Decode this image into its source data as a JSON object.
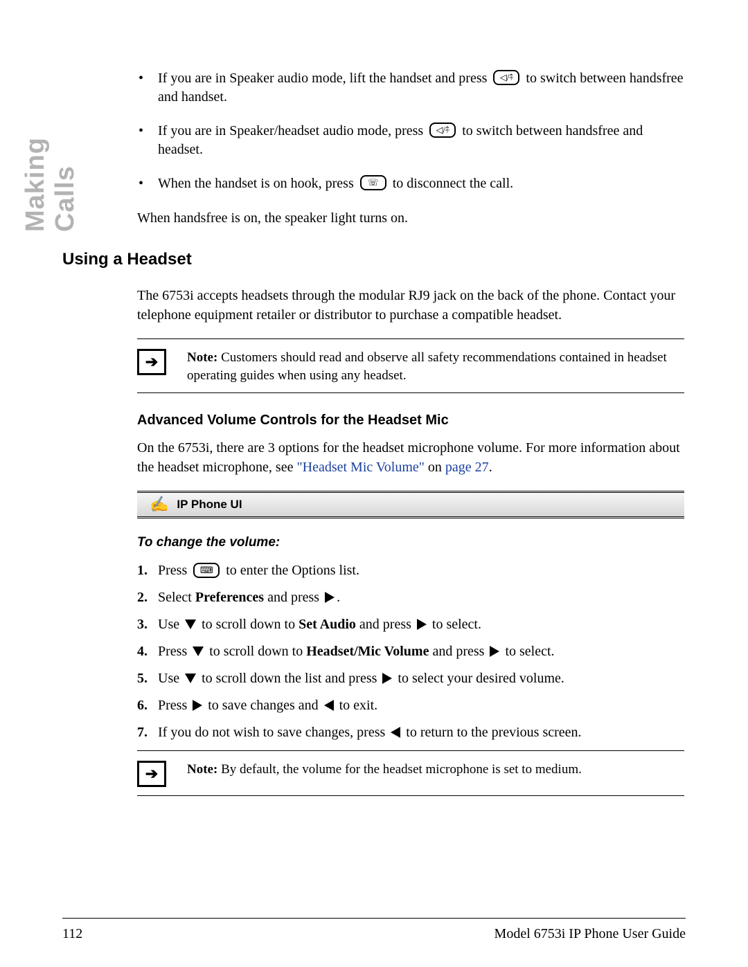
{
  "side_tab": "Making Calls",
  "bullets": {
    "b1a": "If you are in Speaker audio mode, lift the handset and press ",
    "b1b": " to switch between handsfree and handset.",
    "b2a": "If you are in Speaker/headset audio mode, press ",
    "b2b": " to switch between handsfree and headset.",
    "b3a": "When the handset is on hook, press ",
    "b3b": " to disconnect the call."
  },
  "para_after_bullets": "When handsfree is on, the speaker light turns on.",
  "h2": "Using a Headset",
  "headset_intro": "The 6753i accepts headsets through the modular RJ9 jack on the back of the phone. Contact your telephone equipment retailer or distributor to purchase a compatible headset.",
  "note1": {
    "label": "Note:",
    "text": " Customers should read and observe all safety recommendations contained in headset operating guides when using any headset."
  },
  "h3": "Advanced Volume Controls for the Headset Mic",
  "adv_para_a": "On the 6753i, there are 3 options for the headset microphone volume. For more information about the headset microphone, see ",
  "adv_link1": "\"Headset Mic Volume\"",
  "adv_para_b": " on ",
  "adv_link2": "page 27",
  "adv_para_c": ".",
  "ui_bar": "IP Phone UI",
  "h4": "To change the volume:",
  "steps": {
    "s1a": "Press ",
    "s1b": " to enter the Options list.",
    "s2a": "Select ",
    "s2b": "Preferences",
    "s2c": " and press ",
    "s2d": ".",
    "s3a": "Use ",
    "s3b": " to scroll down to ",
    "s3c": "Set Audio",
    "s3d": " and press ",
    "s3e": " to select.",
    "s4a": "Press ",
    "s4b": " to scroll down to ",
    "s4c": "Headset/Mic Volume",
    "s4d": " and press ",
    "s4e": " to select.",
    "s5a": "Use ",
    "s5b": " to scroll down the list and press ",
    "s5c": " to select your desired volume.",
    "s6a": "Press ",
    "s6b": " to save changes and ",
    "s6c": " to exit.",
    "s7a": "If you do not wish to save changes, press ",
    "s7b": " to return to the previous screen."
  },
  "note2": {
    "label": "Note:",
    "text": " By default, the volume for the headset microphone is set to medium."
  },
  "footer": {
    "page": "112",
    "guide": "Model 6753i IP Phone User Guide"
  },
  "icons": {
    "speaker": "◁/⤉",
    "goodbye": "☏",
    "options": "⌨"
  }
}
